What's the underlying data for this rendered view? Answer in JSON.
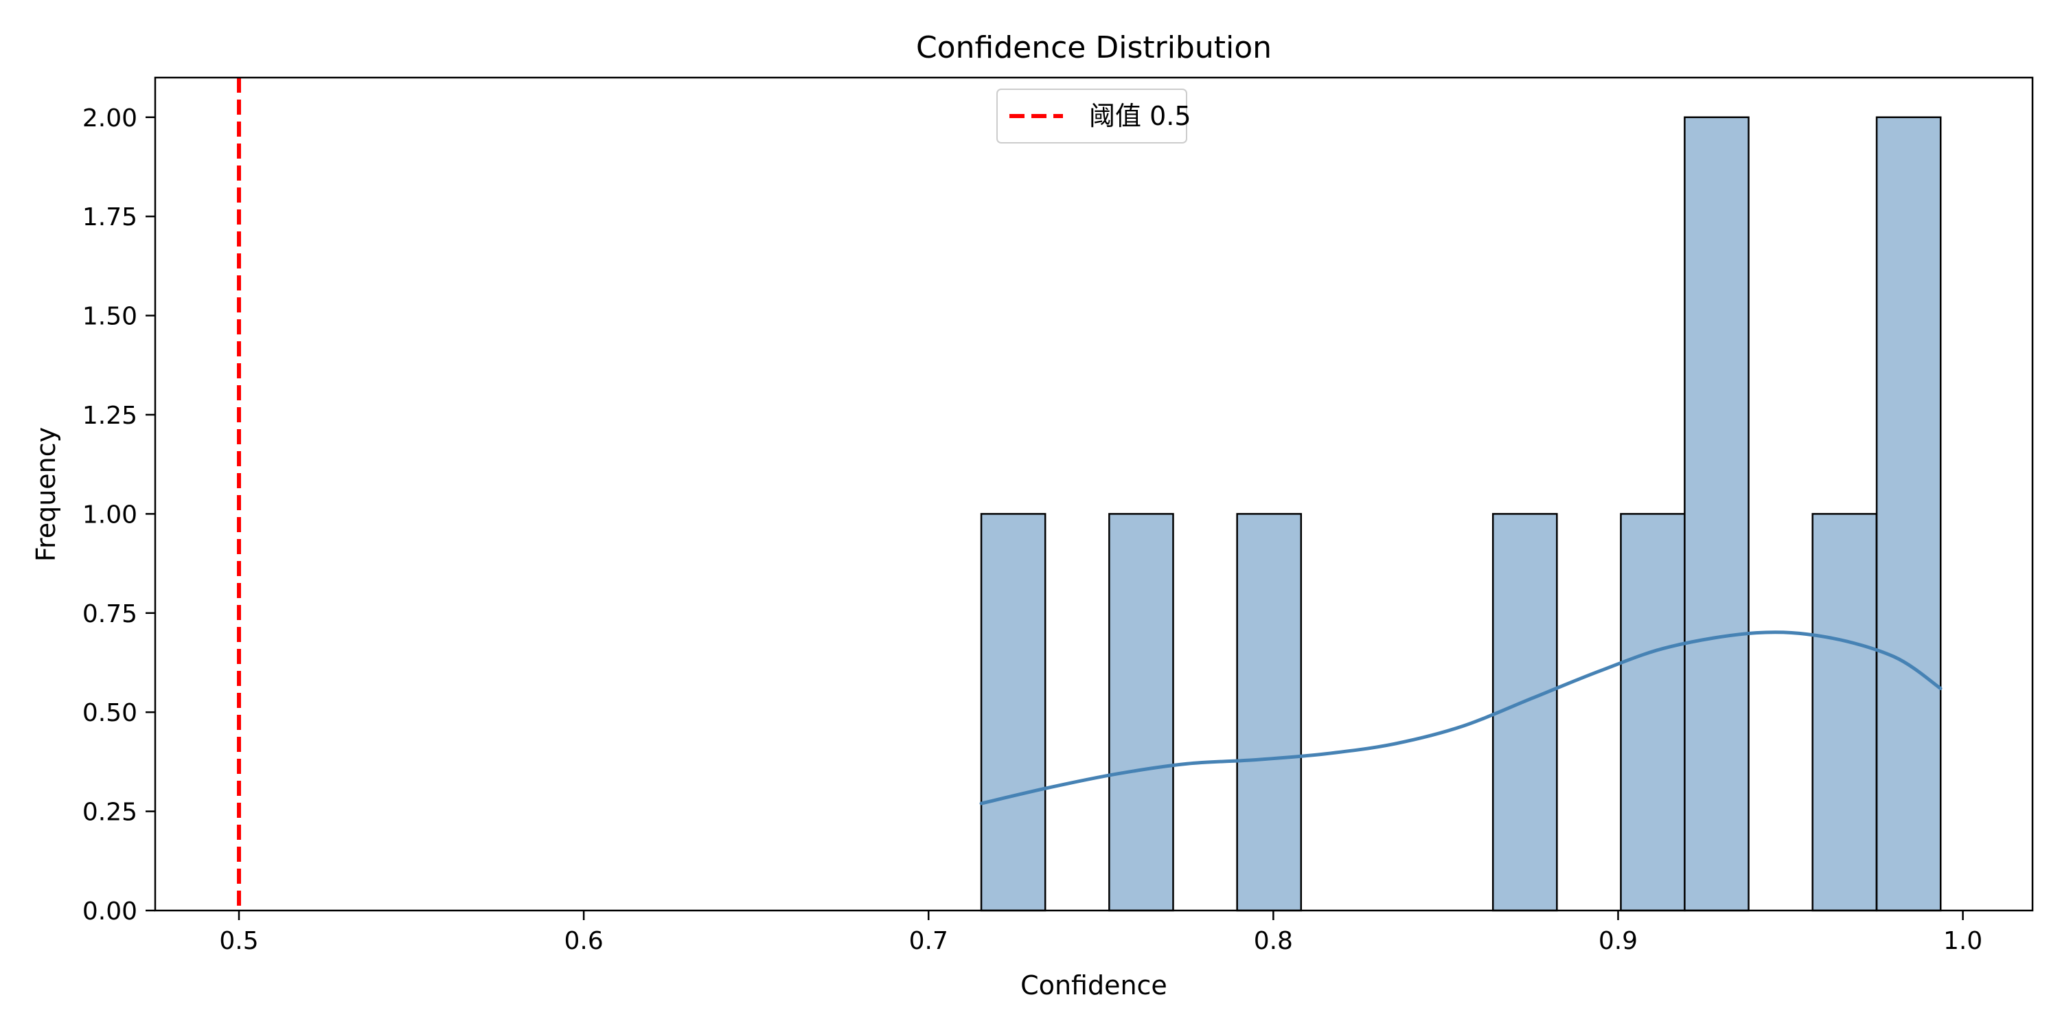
{
  "chart_data": {
    "type": "bar",
    "title": "Confidence Distribution",
    "xlabel": "Confidence",
    "ylabel": "Frequency",
    "xlim": [
      0.4757,
      1.0202
    ],
    "ylim": [
      0,
      2.1
    ],
    "x_ticks": [
      0.5,
      0.6,
      0.7,
      0.8,
      0.9,
      1.0
    ],
    "x_tick_labels": [
      "0.5",
      "0.6",
      "0.7",
      "0.8",
      "0.9",
      "1.0"
    ],
    "y_ticks": [
      0,
      0.25,
      0.5,
      0.75,
      1.0,
      1.25,
      1.5,
      1.75,
      2.0
    ],
    "y_tick_labels": [
      "0.00",
      "0.25",
      "0.50",
      "0.75",
      "1.00",
      "1.25",
      "1.50",
      "1.75",
      "2.00"
    ],
    "bin_width": 0.01855,
    "bins": [
      {
        "x0": 0.7153,
        "count": 1
      },
      {
        "x0": 0.7524,
        "count": 1
      },
      {
        "x0": 0.7895,
        "count": 1
      },
      {
        "x0": 0.8637,
        "count": 1
      },
      {
        "x0": 0.9008,
        "count": 1
      },
      {
        "x0": 0.9193,
        "count": 2
      },
      {
        "x0": 0.9564,
        "count": 1
      },
      {
        "x0": 0.975,
        "count": 2
      }
    ],
    "kde": {
      "x": [
        0.7153,
        0.735,
        0.755,
        0.775,
        0.795,
        0.815,
        0.835,
        0.855,
        0.875,
        0.895,
        0.915,
        0.94,
        0.96,
        0.98,
        0.9935
      ],
      "y": [
        0.27,
        0.31,
        0.345,
        0.37,
        0.38,
        0.395,
        0.42,
        0.465,
        0.535,
        0.605,
        0.665,
        0.7,
        0.69,
        0.64,
        0.56
      ]
    },
    "threshold": {
      "x": 0.5,
      "label": "阈值 0.5"
    },
    "legend": {
      "placement": "top-center"
    },
    "colors": {
      "bar_fill": "#a3c0da",
      "bar_edge": "#000000",
      "kde": "#4682b4",
      "threshold": "#ff0000"
    },
    "grid": false
  }
}
